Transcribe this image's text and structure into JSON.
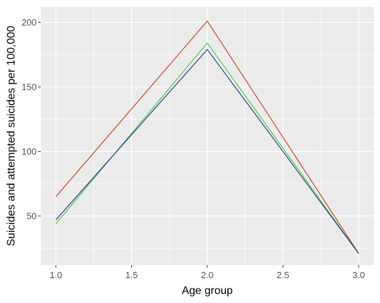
{
  "chart_data": {
    "type": "line",
    "xlabel": "Age group",
    "ylabel": "Suicides and attempted suicides per 100,000",
    "xlim": [
      0.9,
      3.1
    ],
    "ylim": [
      12,
      212
    ],
    "x_ticks": [
      1.0,
      1.5,
      2.0,
      2.5,
      3.0
    ],
    "x_tick_labels": [
      "1.0",
      "1.5",
      "2.0",
      "2.5",
      "3.0"
    ],
    "y_ticks": [
      50,
      100,
      150,
      200
    ],
    "y_tick_labels": [
      "50",
      "100",
      "150",
      "200"
    ],
    "grid": true,
    "legend": "none",
    "panel_background": "#ebebeb",
    "grid_color": "#ffffff",
    "series": [
      {
        "color": "#cc3311",
        "x": [
          1.0,
          2.0,
          3.0
        ],
        "y": [
          65,
          201,
          21
        ]
      },
      {
        "color": "#33cc33",
        "x": [
          1.0,
          2.0,
          3.0
        ],
        "y": [
          44,
          184,
          21
        ]
      },
      {
        "color": "#1a2a8c",
        "x": [
          1.0,
          2.0,
          3.0
        ],
        "y": [
          47,
          179,
          21
        ]
      }
    ]
  }
}
